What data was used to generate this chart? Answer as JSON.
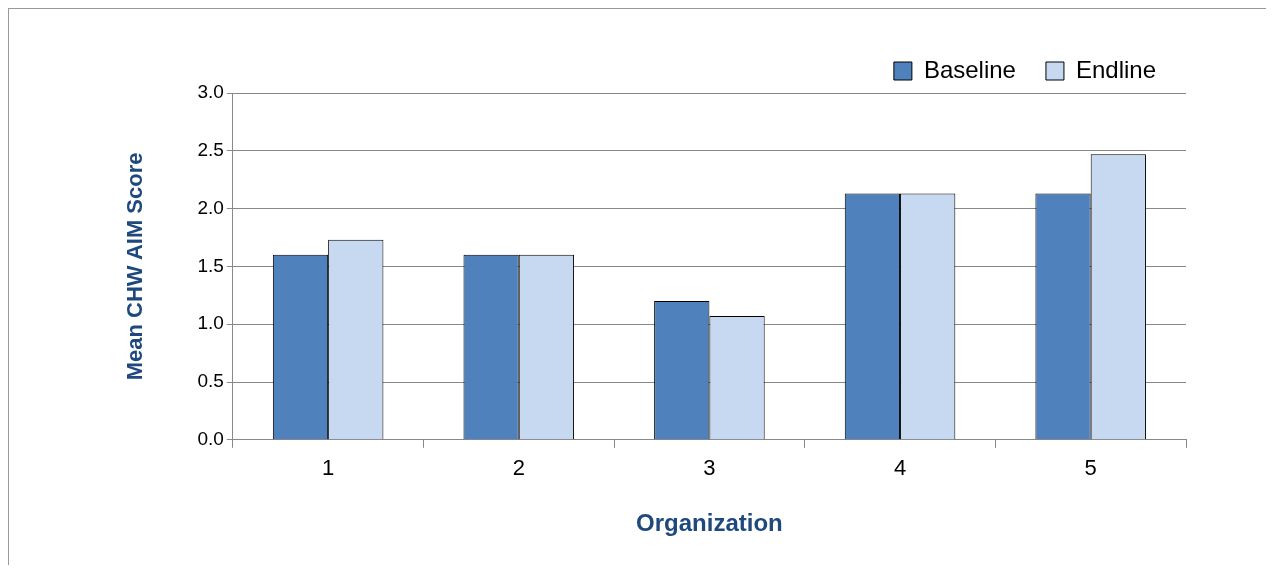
{
  "chart_data": {
    "type": "bar",
    "xlabel": "Organization",
    "ylabel": "Mean CHW AIM Score",
    "categories": [
      "1",
      "2",
      "3",
      "4",
      "5"
    ],
    "series": [
      {
        "name": "Baseline",
        "color": "#4f81bd",
        "values": [
          1.6,
          1.6,
          1.2,
          2.13,
          2.13
        ]
      },
      {
        "name": "Endline",
        "color": "#c6d9f1",
        "values": [
          1.73,
          1.6,
          1.07,
          2.13,
          2.47
        ]
      }
    ],
    "ylim": [
      0,
      3
    ],
    "yticks": [
      {
        "value": 0,
        "label": "0.0"
      },
      {
        "value": 0.5,
        "label": "0.5"
      },
      {
        "value": 1,
        "label": "1.0"
      },
      {
        "value": 1.5,
        "label": "1.5"
      },
      {
        "value": 2,
        "label": "2.0"
      },
      {
        "value": 2.5,
        "label": "2.5"
      },
      {
        "value": 3,
        "label": "3.0"
      }
    ],
    "grid": "y",
    "legend": "top right"
  }
}
